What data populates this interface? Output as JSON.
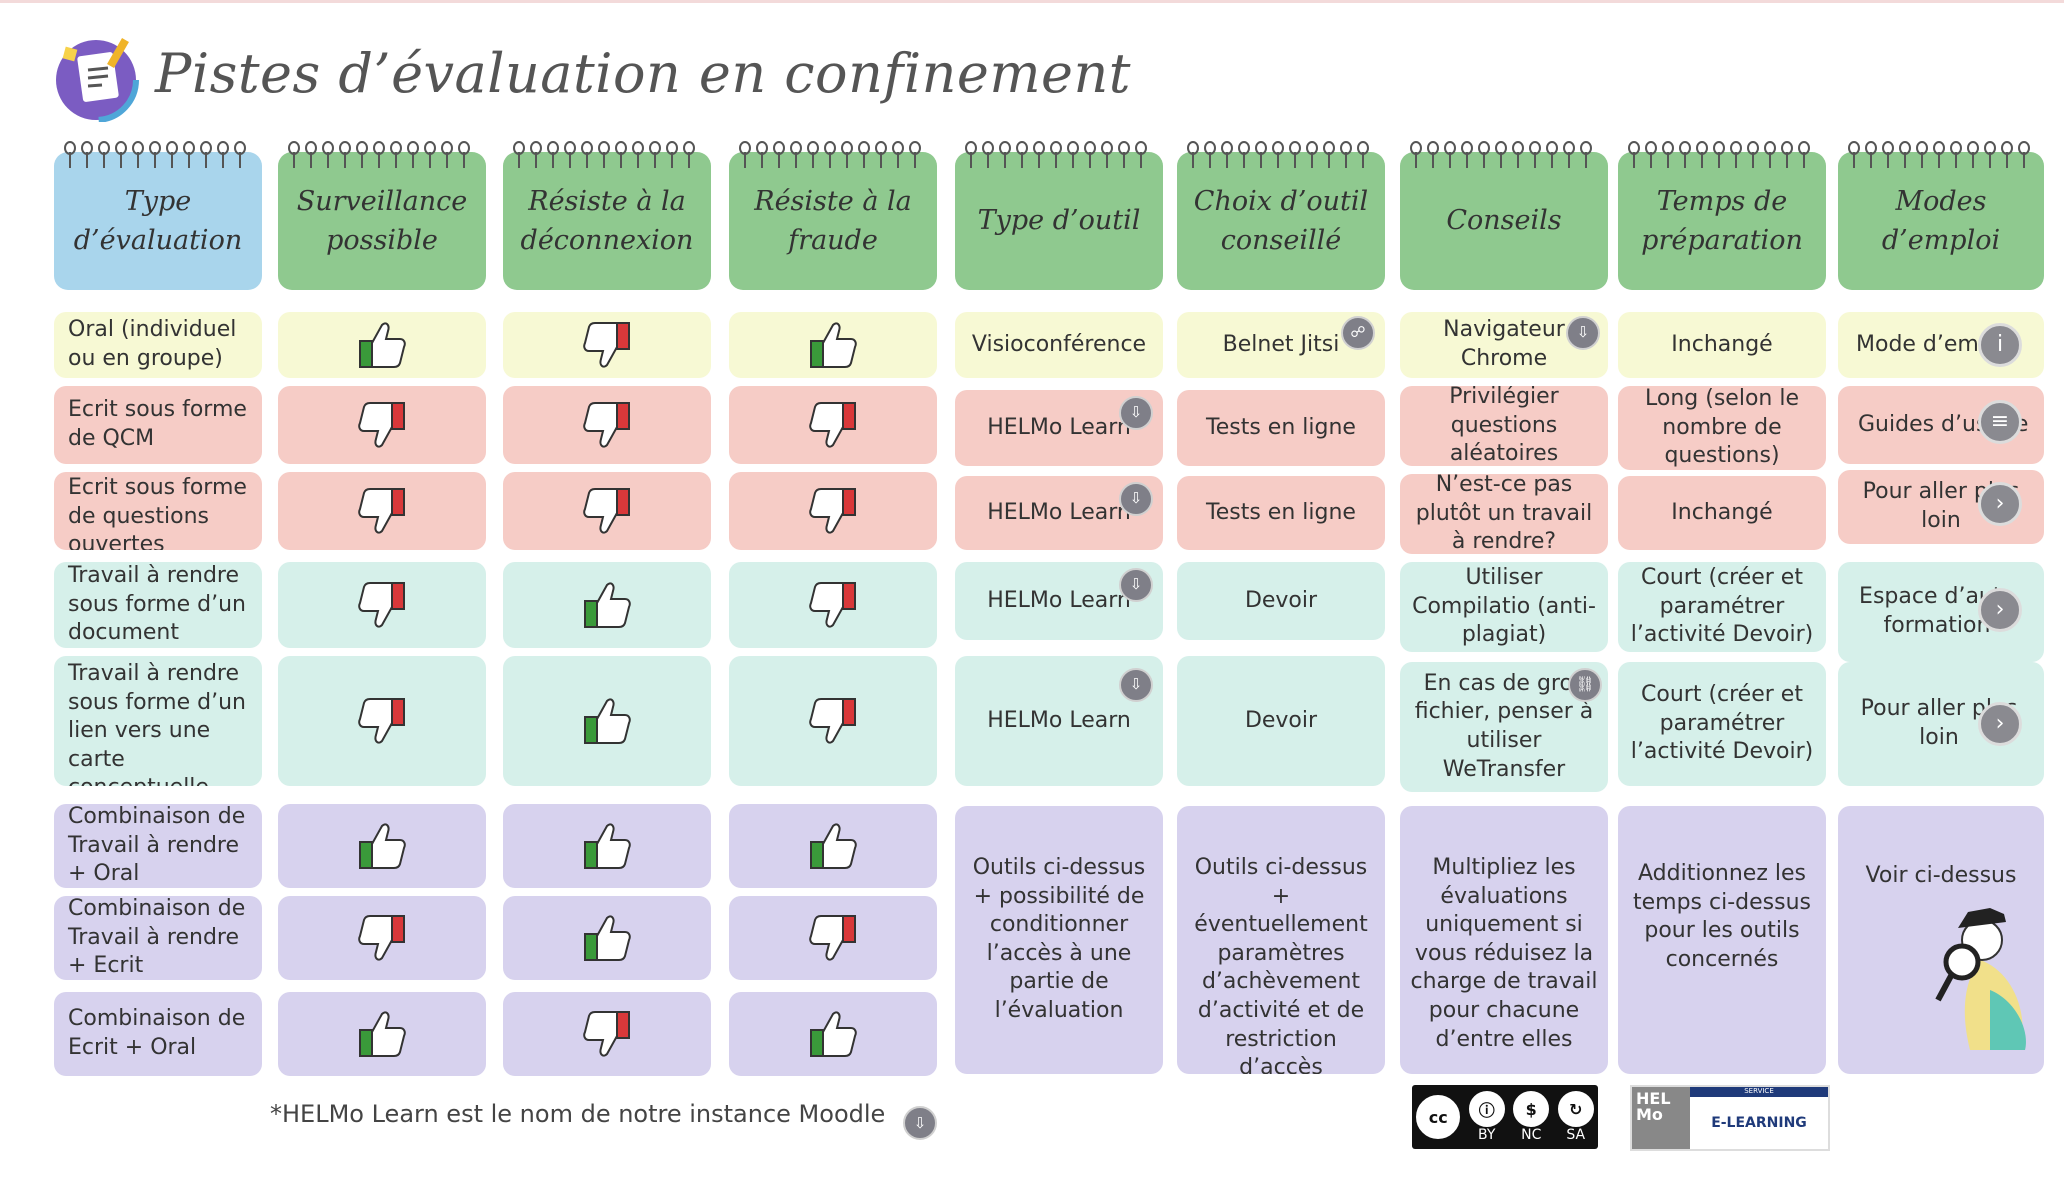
{
  "title": "Pistes d’évaluation en confinement",
  "colors": {
    "header_green": "#8fc98f",
    "header_blue": "#a9d5ec",
    "oral_yellow": "#f7f9d4",
    "ecrit_red": "#f6ccc6",
    "travail_green": "#d6f0ea",
    "combo_purple": "#d7d2ee",
    "thumb_up": "#3a9a3a",
    "thumb_down": "#d9383a"
  },
  "headers": {
    "type": "Type d’évaluation",
    "surveillance": "Surveillance possible",
    "deconnexion": "Résiste à la déconnexion",
    "fraude": "Résiste à la fraude",
    "outil": "Type d’outil",
    "choix": "Choix d’outil conseillé",
    "conseils": "Conseils",
    "temps": "Temps de préparation",
    "modes": "Modes d’emploi"
  },
  "rows": [
    {
      "type": "Oral (individuel ou en groupe)",
      "s": "up",
      "d": "down",
      "f": "up"
    },
    {
      "type": "Ecrit sous forme de QCM",
      "s": "down",
      "d": "down",
      "f": "down"
    },
    {
      "type": "Ecrit sous forme de questions ouvertes",
      "s": "down",
      "d": "down",
      "f": "down"
    },
    {
      "type": "Travail à rendre sous forme d’un document",
      "s": "down",
      "d": "up",
      "f": "down"
    },
    {
      "type": "Travail à rendre sous forme d’un lien vers une carte conceptuelle, une vidéo,...",
      "s": "down",
      "d": "up",
      "f": "down"
    },
    {
      "type": "Combinaison de Travail à rendre + Oral",
      "s": "up",
      "d": "up",
      "f": "up"
    },
    {
      "type": "Combinaison de Travail à rendre + Ecrit",
      "s": "down",
      "d": "up",
      "f": "down"
    },
    {
      "type": "Combinaison de Ecrit + Oral",
      "s": "up",
      "d": "down",
      "f": "up"
    }
  ],
  "outil": {
    "r1": "Visioconférence",
    "r2": "HELMo Learn",
    "r3": "HELMo Learn",
    "r4": "HELMo Learn",
    "r5": "HELMo Learn",
    "combo": "Outils ci-dessus + possibilité de conditionner l’accès à une partie de l’évaluation"
  },
  "choix": {
    "r1": "Belnet Jitsi",
    "r2": "Tests en ligne",
    "r3": "Tests en ligne",
    "r4": "Devoir",
    "r5": "Devoir",
    "combo": "Outils ci-dessus + éventuellement paramètres d’achèvement d’activité et de restriction d’accès"
  },
  "conseils": {
    "r1": "Navigateur Chrome",
    "r2": "Privilégier questions aléatoires",
    "r3": "N’est-ce pas plutôt un travail à rendre?",
    "r4": "Utiliser Compilatio (anti-plagiat)",
    "r5": "En cas de gros fichier, penser à utiliser WeTransfer",
    "combo": "Multipliez les évaluations uniquement si vous réduisez la charge de travail pour chacune d’entre elles"
  },
  "temps": {
    "r1": "Inchangé",
    "r2": "Long (selon le nombre de questions)",
    "r3": "Inchangé",
    "r4": "Court (créer et paramétrer l’activité Devoir)",
    "r5": "Court (créer et paramétrer l’activité Devoir)",
    "combo": "Additionnez les temps ci-dessus pour les outils concernés"
  },
  "modes": {
    "r1": "Mode d’emploi",
    "r2": "Guides d’usage",
    "r3": "Pour aller plus loin",
    "r4": "Espace d’auto formation",
    "r5": "Pour aller plus loin",
    "combo": "Voir ci-dessus"
  },
  "footnote": "*HELMo Learn est le nom de notre instance Moodle",
  "license": {
    "labels": [
      "BY",
      "NC",
      "SA"
    ]
  },
  "helmo_logo": {
    "left": "HEL Mo",
    "bar": "SERVICE",
    "right": "E-LEARNING"
  }
}
